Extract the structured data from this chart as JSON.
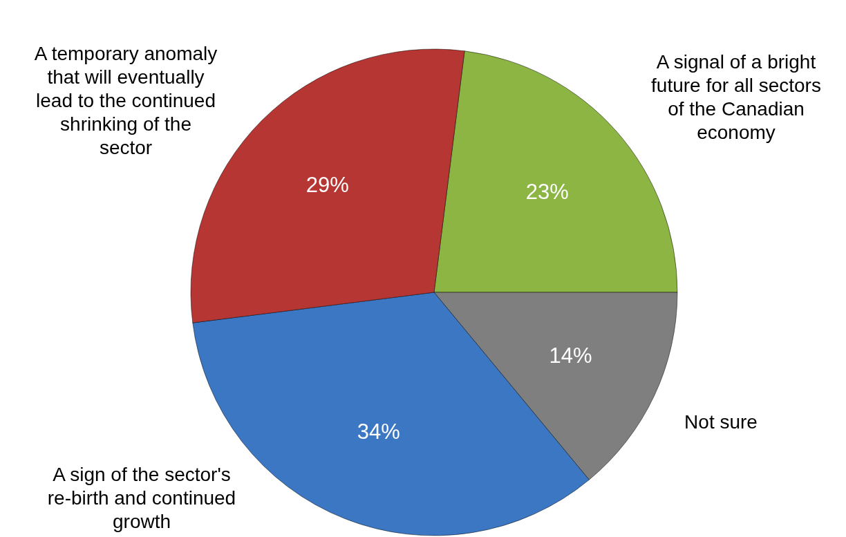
{
  "chart_data": {
    "type": "pie",
    "categories": [
      "A signal of a bright future for all sectors of the Canadian economy",
      "Not sure",
      "A sign of the sector's re-birth and continued growth",
      "A temporary anomaly that will eventually lead to the continued shrinking of the sector"
    ],
    "values": [
      23,
      14,
      34,
      29
    ],
    "colors": [
      "#8cb544",
      "#7f7f7f",
      "#3b77c2",
      "#b63633"
    ],
    "value_labels": [
      "23%",
      "14%",
      "34%",
      "29%"
    ]
  }
}
